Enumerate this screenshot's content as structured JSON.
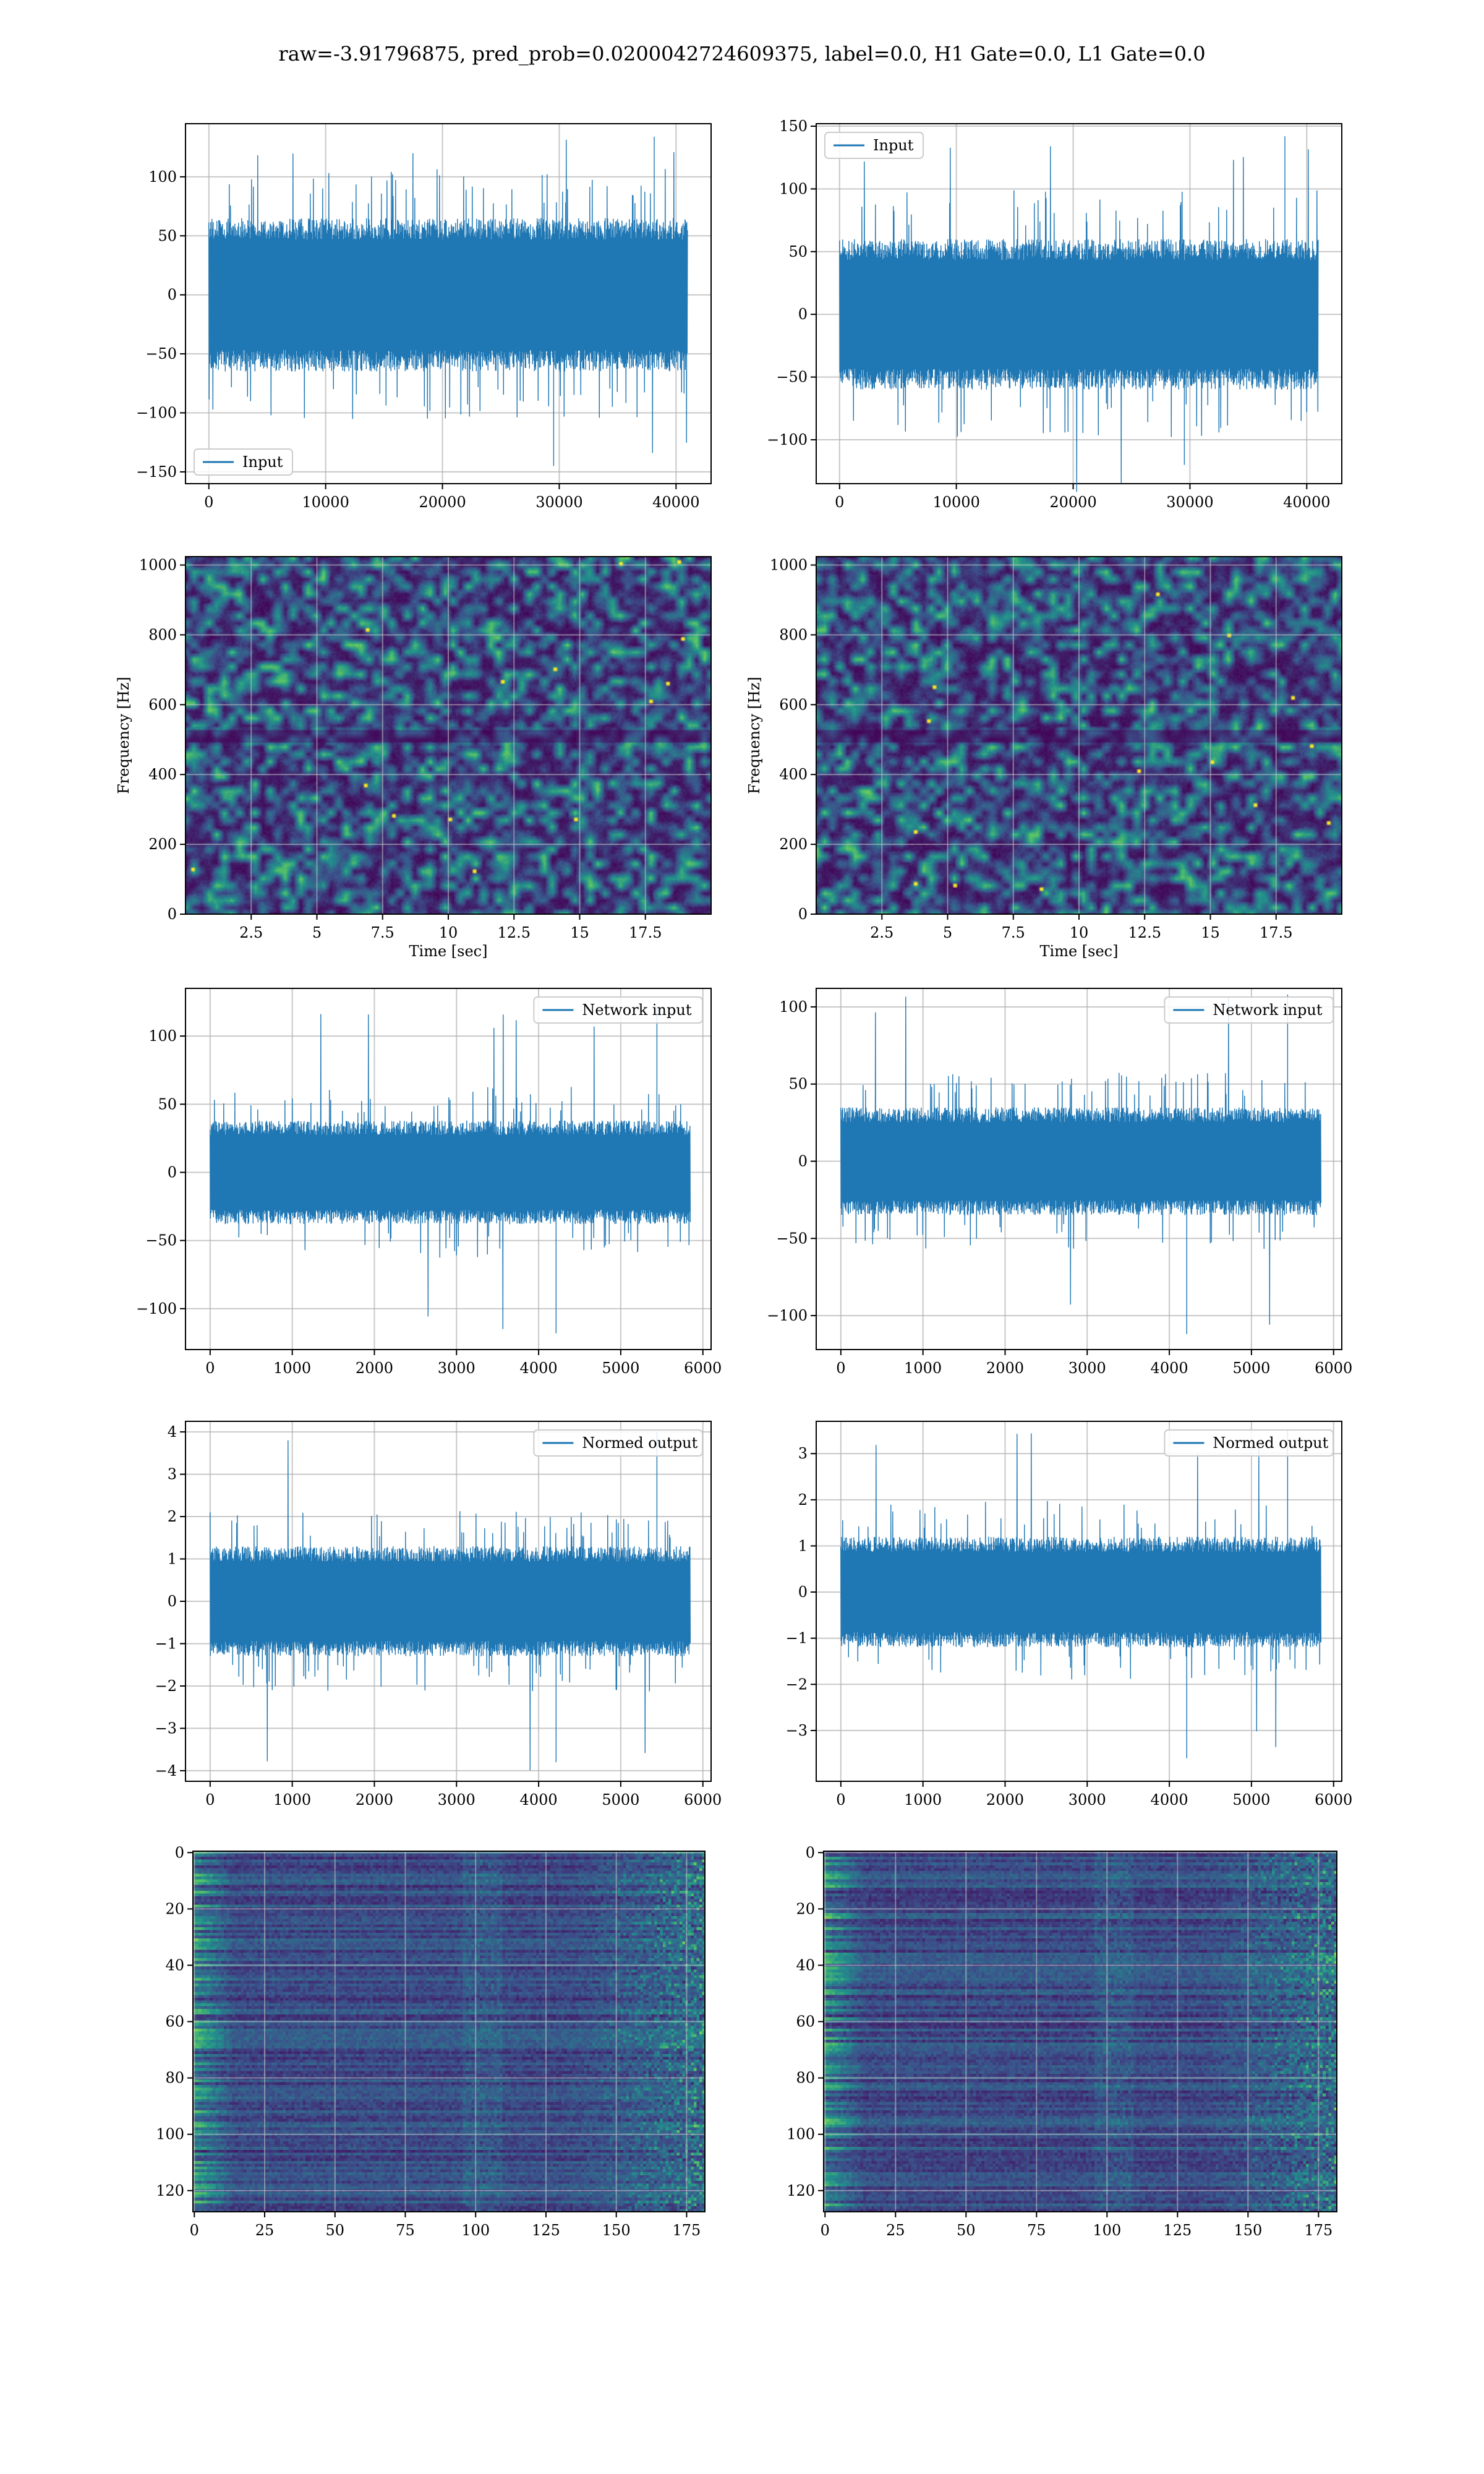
{
  "title": "raw=-3.91796875, pred_prob=0.0200042724609375, label=0.0, H1 Gate=0.0, L1 Gate=0.0",
  "colors": {
    "line": "#1f77b4",
    "grid": "#b0b0b0",
    "viridis_dark": "#440154",
    "viridis_bright": "#fde725"
  },
  "chart_data": [
    {
      "id": "input-left",
      "type": "line",
      "series": [
        {
          "name": "Input"
        }
      ],
      "legend": "lower-left",
      "xlim": [
        -2000,
        43000
      ],
      "ylim": [
        -160,
        145
      ],
      "xticks": [
        0,
        10000,
        20000,
        30000,
        40000
      ],
      "yticks": [
        -150,
        -100,
        -50,
        0,
        50,
        100
      ],
      "samples_x": [
        0,
        41000
      ],
      "envelope": 65,
      "spike_extremes": [
        134,
        -145
      ],
      "grid": true
    },
    {
      "id": "input-right",
      "type": "line",
      "series": [
        {
          "name": "Input"
        }
      ],
      "legend": "upper-left",
      "xlim": [
        -2000,
        43000
      ],
      "ylim": [
        -135,
        152
      ],
      "xticks": [
        0,
        10000,
        20000,
        30000,
        40000
      ],
      "yticks": [
        -100,
        -50,
        0,
        50,
        100,
        150
      ],
      "samples_x": [
        0,
        41000
      ],
      "envelope": 60,
      "spike_extremes": [
        142,
        -120
      ],
      "grid": true
    },
    {
      "id": "spectrogram-left",
      "type": "heatmap",
      "xlabel": "Time [sec]",
      "ylabel": "Frequency [Hz]",
      "xlim": [
        0,
        20
      ],
      "ylim": [
        0,
        1024
      ],
      "xticks": [
        2.5,
        5.0,
        7.5,
        10.0,
        12.5,
        15.0,
        17.5
      ],
      "yticks": [
        0,
        200,
        400,
        600,
        800,
        1000
      ],
      "colormap": "viridis",
      "grid": true
    },
    {
      "id": "spectrogram-right",
      "type": "heatmap",
      "xlabel": "Time [sec]",
      "ylabel": "Frequency [Hz]",
      "xlim": [
        0,
        20
      ],
      "ylim": [
        0,
        1024
      ],
      "xticks": [
        2.5,
        5.0,
        7.5,
        10.0,
        12.5,
        15.0,
        17.5
      ],
      "yticks": [
        0,
        200,
        400,
        600,
        800,
        1000
      ],
      "colormap": "viridis",
      "grid": true
    },
    {
      "id": "network-left",
      "type": "line",
      "series": [
        {
          "name": "Network input"
        }
      ],
      "legend": "upper-right",
      "xlim": [
        -300,
        6100
      ],
      "ylim": [
        -130,
        135
      ],
      "xticks": [
        0,
        1000,
        2000,
        3000,
        4000,
        5000,
        6000
      ],
      "yticks": [
        -100,
        -50,
        0,
        50,
        100
      ],
      "samples_x": [
        0,
        5850
      ],
      "envelope": 38,
      "spike_extremes": [
        122,
        -118
      ],
      "grid": true
    },
    {
      "id": "network-right",
      "type": "line",
      "series": [
        {
          "name": "Network input"
        }
      ],
      "legend": "upper-right",
      "xlim": [
        -300,
        6100
      ],
      "ylim": [
        -122,
        112
      ],
      "xticks": [
        0,
        1000,
        2000,
        3000,
        4000,
        5000,
        6000
      ],
      "yticks": [
        -100,
        -50,
        0,
        50,
        100
      ],
      "samples_x": [
        0,
        5850
      ],
      "envelope": 35,
      "spike_extremes": [
        108,
        -112
      ],
      "grid": true
    },
    {
      "id": "normed-left",
      "type": "line",
      "series": [
        {
          "name": "Normed output"
        }
      ],
      "legend": "upper-right",
      "xlim": [
        -300,
        6100
      ],
      "ylim": [
        -4.25,
        4.25
      ],
      "xticks": [
        0,
        1000,
        2000,
        3000,
        4000,
        5000,
        6000
      ],
      "yticks": [
        -4,
        -3,
        -2,
        -1,
        0,
        1,
        2,
        3,
        4
      ],
      "samples_x": [
        0,
        5850
      ],
      "envelope": 1.3,
      "spike_extremes": [
        4.0,
        -3.8
      ],
      "grid": true
    },
    {
      "id": "normed-right",
      "type": "line",
      "series": [
        {
          "name": "Normed output"
        }
      ],
      "legend": "upper-right",
      "xlim": [
        -300,
        6100
      ],
      "ylim": [
        -4.1,
        3.7
      ],
      "xticks": [
        0,
        1000,
        2000,
        3000,
        4000,
        5000,
        6000
      ],
      "yticks": [
        -3,
        -2,
        -1,
        0,
        1,
        2,
        3
      ],
      "samples_x": [
        0,
        5850
      ],
      "envelope": 1.2,
      "spike_extremes": [
        3.5,
        -3.6
      ],
      "grid": true
    },
    {
      "id": "features-left",
      "type": "heatmap",
      "xlim": [
        -0.5,
        181.5
      ],
      "ylim": [
        127.5,
        -0.5
      ],
      "xticks": [
        0,
        25,
        50,
        75,
        100,
        125,
        150,
        175
      ],
      "yticks": [
        0,
        20,
        40,
        60,
        80,
        100,
        120
      ],
      "rows": 128,
      "cols": 182,
      "colormap": "viridis",
      "grid": true
    },
    {
      "id": "features-right",
      "type": "heatmap",
      "xlim": [
        -0.5,
        181.5
      ],
      "ylim": [
        127.5,
        -0.5
      ],
      "xticks": [
        0,
        25,
        50,
        75,
        100,
        125,
        150,
        175
      ],
      "yticks": [
        0,
        20,
        40,
        60,
        80,
        100,
        120
      ],
      "rows": 128,
      "cols": 182,
      "colormap": "viridis",
      "grid": true
    }
  ]
}
